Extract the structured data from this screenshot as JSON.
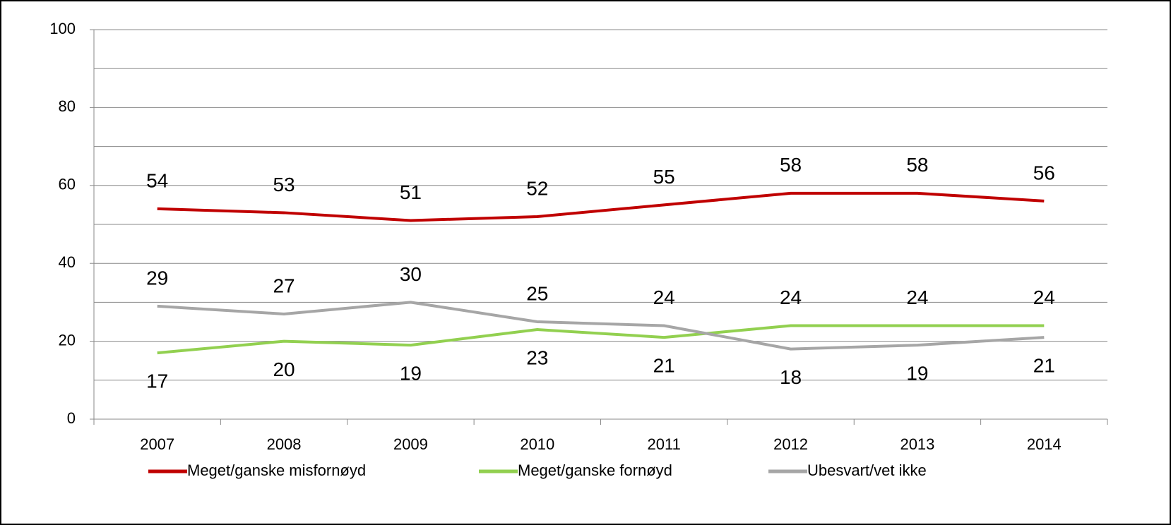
{
  "chart_data": {
    "type": "line",
    "categories": [
      "2007",
      "2008",
      "2009",
      "2010",
      "2011",
      "2012",
      "2013",
      "2014"
    ],
    "series": [
      {
        "name": "Meget/ganske misfornøyd",
        "color": "#c00000",
        "values": [
          54,
          53,
          51,
          52,
          55,
          58,
          58,
          56
        ]
      },
      {
        "name": "Meget/ganske fornøyd",
        "color": "#92d050",
        "values": [
          17,
          20,
          19,
          23,
          21,
          24,
          24,
          24
        ]
      },
      {
        "name": "Ubesvart/vet ikke",
        "color": "#a6a6a6",
        "values": [
          29,
          27,
          30,
          25,
          24,
          18,
          19,
          21
        ]
      }
    ],
    "ylim": [
      0,
      100
    ],
    "yticks": [
      0,
      20,
      40,
      60,
      80,
      100
    ],
    "minor_yticks": [
      10,
      30,
      50,
      70,
      90
    ],
    "grid": true,
    "legend": "bottom"
  }
}
